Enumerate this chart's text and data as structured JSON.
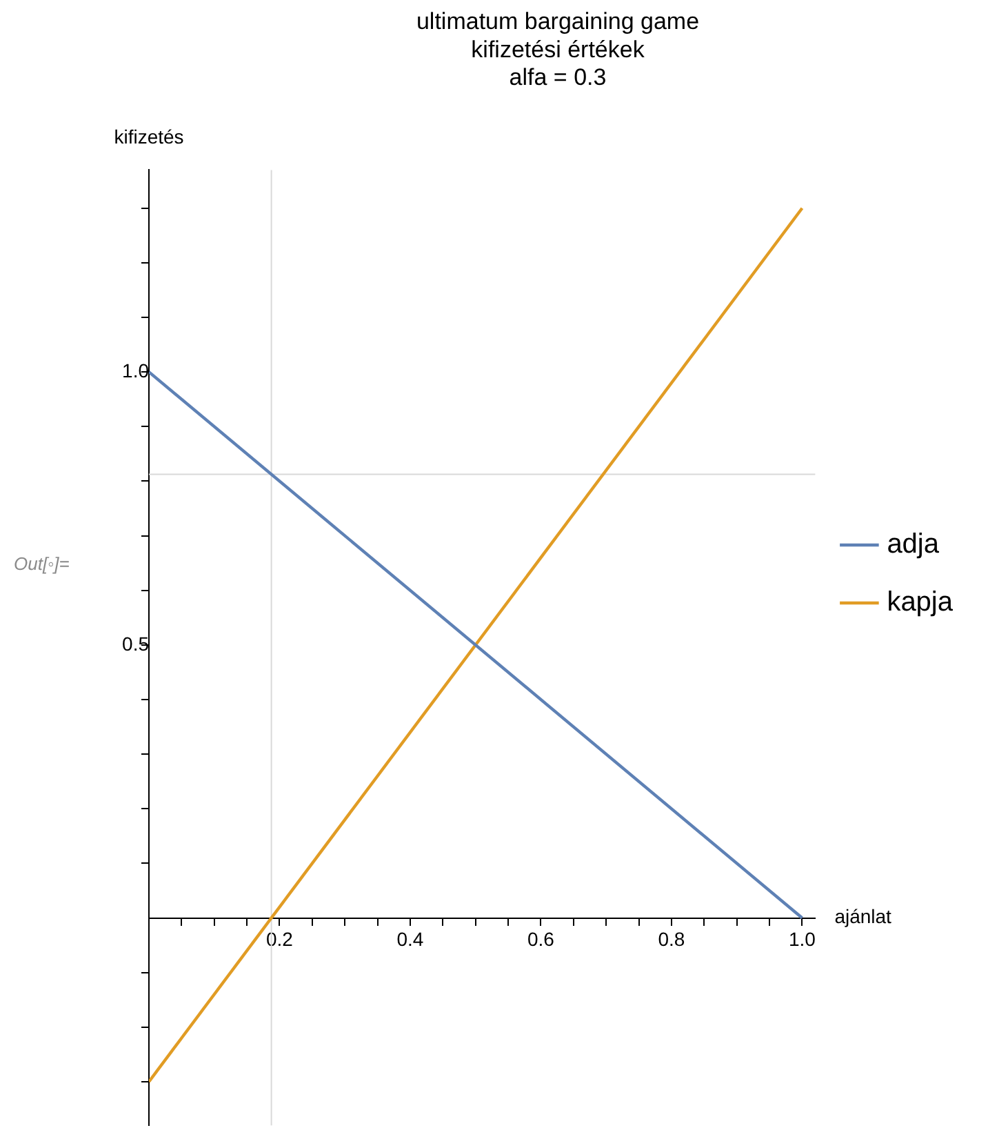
{
  "chart_data": {
    "type": "line",
    "title": "ultimatum bargaining game\nkifizetési értékek\nalfa = 0.3",
    "xlabel": "ajánlat",
    "ylabel": "kifizetés",
    "annotations": [
      "Out[◦]="
    ],
    "x": [
      0,
      1
    ],
    "series": [
      {
        "name": "adja",
        "color": "#5e81b5",
        "values": [
          1,
          0
        ]
      },
      {
        "name": "kapja",
        "color": "#e19c24",
        "values": [
          -0.3,
          1.3
        ]
      }
    ],
    "xlim": [
      0,
      1.02
    ],
    "ylim": [
      -0.38,
      1.37
    ],
    "xticks": [
      {
        "value": 0.05,
        "label": null
      },
      {
        "value": 0.1,
        "label": null
      },
      {
        "value": 0.15,
        "label": null
      },
      0.2,
      {
        "value": 0.25,
        "label": null
      },
      {
        "value": 0.3,
        "label": null
      },
      {
        "value": 0.35,
        "label": null
      },
      0.4,
      {
        "value": 0.45,
        "label": null
      },
      {
        "value": 0.5,
        "label": null
      },
      {
        "value": 0.55,
        "label": null
      },
      0.6,
      {
        "value": 0.65,
        "label": null
      },
      {
        "value": 0.7,
        "label": null
      },
      {
        "value": 0.75,
        "label": null
      },
      0.8,
      {
        "value": 0.85,
        "label": null
      },
      {
        "value": 0.9,
        "label": null
      },
      {
        "value": 0.95,
        "label": null
      },
      {
        "value": 1,
        "label": "1.0"
      }
    ],
    "yticks": [
      {
        "value": -0.3,
        "label": null
      },
      {
        "value": -0.2,
        "label": null
      },
      {
        "value": -0.1,
        "label": null
      },
      {
        "value": 0.1,
        "label": null
      },
      {
        "value": 0.2,
        "label": null
      },
      {
        "value": 0.3,
        "label": null
      },
      {
        "value": 0.4,
        "label": null
      },
      {
        "value": 0.5,
        "label": "0.5"
      },
      {
        "value": 0.6,
        "label": null
      },
      {
        "value": 0.7,
        "label": null
      },
      {
        "value": 0.8,
        "label": null
      },
      {
        "value": 0.9,
        "label": null
      },
      {
        "value": 1,
        "label": "1.0"
      },
      {
        "value": 1.1,
        "label": null
      },
      {
        "value": 1.2,
        "label": null
      },
      {
        "value": 1.3,
        "label": null
      }
    ],
    "ref_lines": [
      {
        "axis": "x",
        "value": 0.1875,
        "color": "#d9d9d9"
      },
      {
        "axis": "y",
        "value": 0.8125,
        "color": "#d9d9d9"
      }
    ],
    "legend": "right",
    "marker": "none",
    "line_style": "solid"
  }
}
